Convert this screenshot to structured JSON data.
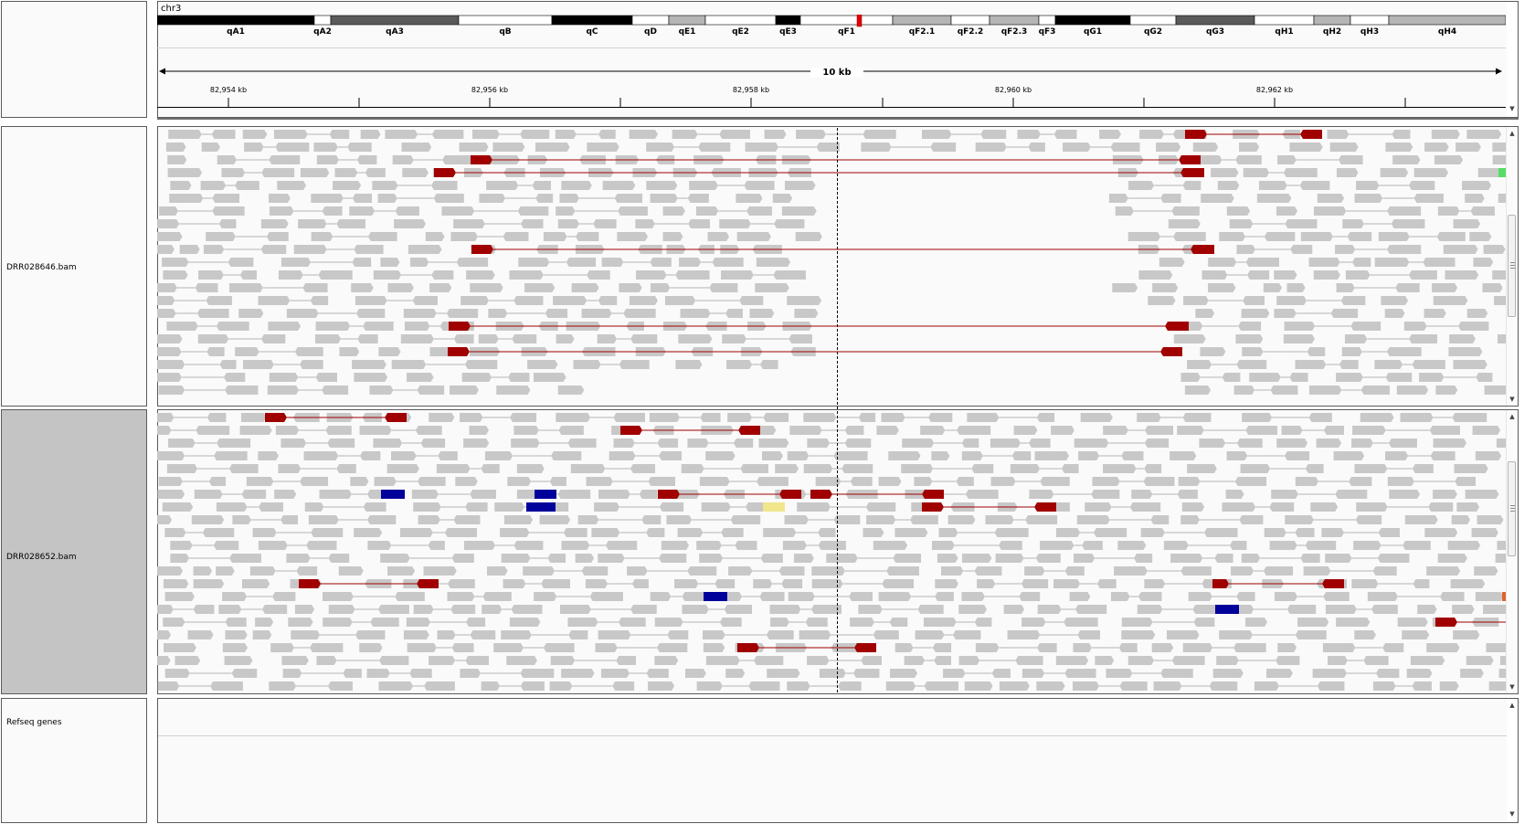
{
  "header": {
    "chromosome": "chr3",
    "span_label": "10 kb",
    "ticks": [
      "82,954 kb",
      "82,956 kb",
      "82,958 kb",
      "82,960 kb",
      "82,962 kb"
    ]
  },
  "ideogram": {
    "bands": [
      {
        "name": "qA1",
        "stain": "black"
      },
      {
        "name": "qA2",
        "stain": "white"
      },
      {
        "name": "qA3",
        "stain": "dark"
      },
      {
        "name": "qB",
        "stain": "white"
      },
      {
        "name": "qC",
        "stain": "black"
      },
      {
        "name": "qD",
        "stain": "white"
      },
      {
        "name": "qE1",
        "stain": "light"
      },
      {
        "name": "qE2",
        "stain": "white"
      },
      {
        "name": "qE3",
        "stain": "black"
      },
      {
        "name": "qF1",
        "stain": "white"
      },
      {
        "name": "qF2.1",
        "stain": "light"
      },
      {
        "name": "qF2.2",
        "stain": "white"
      },
      {
        "name": "qF2.3",
        "stain": "light"
      },
      {
        "name": "qF3",
        "stain": "white"
      },
      {
        "name": "qG1",
        "stain": "black"
      },
      {
        "name": "qG2",
        "stain": "white"
      },
      {
        "name": "qG3",
        "stain": "dark"
      },
      {
        "name": "qH1",
        "stain": "white"
      },
      {
        "name": "qH2",
        "stain": "light"
      },
      {
        "name": "qH3",
        "stain": "white"
      },
      {
        "name": "qH4",
        "stain": "light"
      }
    ],
    "current_region_marker_color": "#e00000"
  },
  "tracks": [
    {
      "name": "DRR028646.bam",
      "selected": false
    },
    {
      "name": "DRR028652.bam",
      "selected": true
    },
    {
      "name": "Refseq genes",
      "selected": false
    }
  ],
  "colors": {
    "read": "#c8c8c8",
    "connector": "#b4b4b4",
    "discordant_pair": "#a00000",
    "interchrom_blue": "#00009a",
    "interchrom_yellow": "#f0e68c",
    "interchrom_green": "#55dd66",
    "interchrom_orange": "#e0622c"
  }
}
